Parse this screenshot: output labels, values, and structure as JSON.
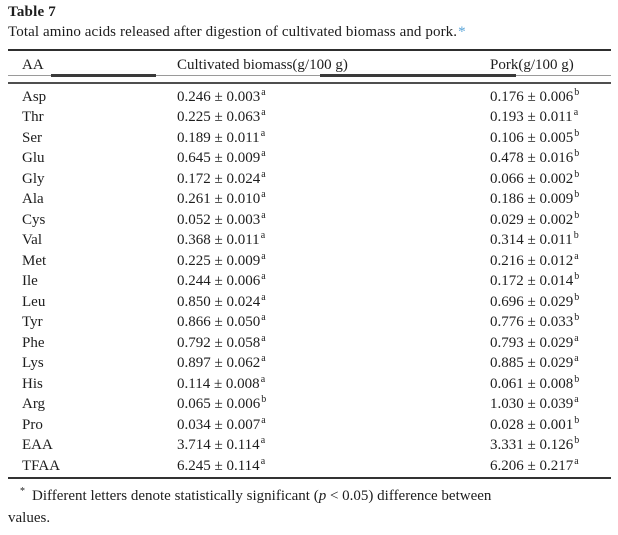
{
  "table_label": "Table 7",
  "caption": {
    "text": "Total amino acids released after digestion of cultivated biomass and pork.",
    "marker": "*"
  },
  "columns": {
    "aa": "AA",
    "biomass": "Cultivated biomass(g/100 g)",
    "pork": "Pork(g/100 g)"
  },
  "rows": [
    {
      "aa": "Asp",
      "biomass": "0.246 ± 0.003",
      "biomass_sup": "a",
      "pork": "0.176 ± 0.006",
      "pork_sup": "b"
    },
    {
      "aa": "Thr",
      "biomass": "0.225 ± 0.063",
      "biomass_sup": "a",
      "pork": "0.193 ± 0.011",
      "pork_sup": "a"
    },
    {
      "aa": "Ser",
      "biomass": "0.189 ± 0.011",
      "biomass_sup": "a",
      "pork": "0.106 ± 0.005",
      "pork_sup": "b"
    },
    {
      "aa": "Glu",
      "biomass": "0.645 ± 0.009",
      "biomass_sup": "a",
      "pork": "0.478 ± 0.016",
      "pork_sup": "b"
    },
    {
      "aa": "Gly",
      "biomass": "0.172 ± 0.024",
      "biomass_sup": "a",
      "pork": "0.066 ± 0.002",
      "pork_sup": "b"
    },
    {
      "aa": "Ala",
      "biomass": "0.261 ± 0.010",
      "biomass_sup": "a",
      "pork": "0.186 ± 0.009",
      "pork_sup": "b"
    },
    {
      "aa": "Cys",
      "biomass": "0.052 ± 0.003",
      "biomass_sup": "a",
      "pork": "0.029 ± 0.002",
      "pork_sup": "b"
    },
    {
      "aa": "Val",
      "biomass": "0.368 ± 0.011",
      "biomass_sup": "a",
      "pork": "0.314 ± 0.011",
      "pork_sup": "b"
    },
    {
      "aa": "Met",
      "biomass": "0.225 ± 0.009",
      "biomass_sup": "a",
      "pork": "0.216 ± 0.012",
      "pork_sup": "a"
    },
    {
      "aa": "Ile",
      "biomass": "0.244 ± 0.006",
      "biomass_sup": "a",
      "pork": "0.172 ± 0.014",
      "pork_sup": "b"
    },
    {
      "aa": "Leu",
      "biomass": "0.850 ± 0.024",
      "biomass_sup": "a",
      "pork": "0.696 ± 0.029",
      "pork_sup": "b"
    },
    {
      "aa": "Tyr",
      "biomass": "0.866 ± 0.050",
      "biomass_sup": "a",
      "pork": "0.776 ± 0.033",
      "pork_sup": "b"
    },
    {
      "aa": "Phe",
      "biomass": "0.792 ± 0.058",
      "biomass_sup": "a",
      "pork": "0.793 ± 0.029",
      "pork_sup": "a"
    },
    {
      "aa": "Lys",
      "biomass": "0.897 ± 0.062",
      "biomass_sup": "a",
      "pork": "0.885 ± 0.029",
      "pork_sup": "a"
    },
    {
      "aa": "His",
      "biomass": "0.114 ± 0.008",
      "biomass_sup": "a",
      "pork": "0.061 ± 0.008",
      "pork_sup": "b"
    },
    {
      "aa": "Arg",
      "biomass": "0.065 ± 0.006",
      "biomass_sup": "b",
      "pork": "1.030 ± 0.039",
      "pork_sup": "a"
    },
    {
      "aa": "Pro",
      "biomass": "0.034 ± 0.007",
      "biomass_sup": "a",
      "pork": "0.028 ± 0.001",
      "pork_sup": "b"
    },
    {
      "aa": "EAA",
      "biomass": "3.714 ± 0.114",
      "biomass_sup": "a",
      "pork": "3.331 ± 0.126",
      "pork_sup": "b"
    },
    {
      "aa": "TFAA",
      "biomass": "6.245 ± 0.114",
      "biomass_sup": "a",
      "pork": "6.206 ± 0.217",
      "pork_sup": "a"
    }
  ],
  "footnote": {
    "marker": "*",
    "line1_pre": "Different letters denote statistically significant (",
    "p_symbol": "p",
    "line1_post": " < 0.05) difference between",
    "line2": "values."
  },
  "colors": {
    "footnote_link_blue": "#58a4d8",
    "text": "#1d1d1d",
    "rule_dark": "#2e2e2e"
  }
}
